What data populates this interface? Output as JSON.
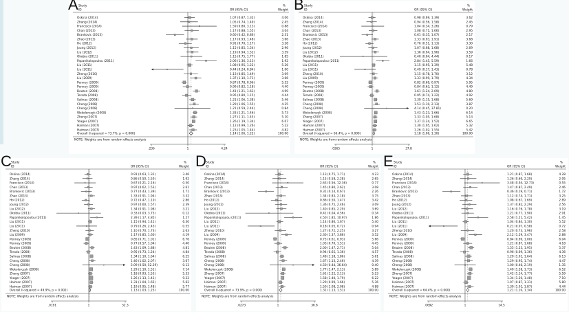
{
  "figure": {
    "description": "Five-panel forest plot (meta-analysis) of odds ratios with 95% confidence intervals",
    "note": "NOTE: Weights are from random effects analysis"
  },
  "chart_data": {
    "type": "forest",
    "note": "NOTE: Weights are from random effects analysis",
    "headers": {
      "study": "Study",
      "id": "ID",
      "or": "OR (95% CI)",
      "pct": "%",
      "weight": "Weight"
    },
    "studies": [
      "Oskina (2014)",
      "Zhang (2014)",
      "Francisco (2014)",
      "Chan (2013)",
      "Brankovic (2013)",
      "Zhao (2013)",
      "Ho (2012)",
      "Joung (2012)",
      "Liu (2012)",
      "Okobia (2011)",
      "Papanikolopoulou (2011)",
      "Liu (2011)",
      "Liu (2011)",
      "Zheng (2010)",
      "Liu (2009)",
      "Penney (2009)",
      "Penney (2009)",
      "Beuten (2008)",
      "Terada (2008)",
      "Salinas (2008)",
      "Cheng (2008)",
      "Cheng (2008)",
      "Wokolorczyk (2008)",
      "Zheng (2007)",
      "Yeager (2007)",
      "Haiman (2007)",
      "Haiman (2007)"
    ],
    "legend_position": "none",
    "grid": false,
    "panels": [
      {
        "label": "A",
        "axis": {
          "min": 0.236,
          "max": 4.24,
          "min_label": ".236",
          "mid_label": "1",
          "max_label": "4.24"
        },
        "overall": {
          "or": 1.14,
          "lo": 1.06,
          "hi": 1.22,
          "weight": "100.00",
          "label": "Overall  (I-squared = 73.7%, p = 0.000)"
        },
        "rows": [
          {
            "or": 1.07,
            "lo": 0.87,
            "hi": 1.32,
            "w": 4.06
          },
          {
            "or": 1.05,
            "lo": 0.74,
            "hi": 1.49,
            "w": 2.45
          },
          {
            "or": 1.59,
            "lo": 0.8,
            "hi": 3.13,
            "w": 0.88
          },
          {
            "or": 1.17,
            "lo": 0.88,
            "hi": 1.55,
            "w": 3.04
          },
          {
            "or": 0.6,
            "lo": 0.42,
            "hi": 0.86,
            "w": 2.31
          },
          {
            "or": 1.17,
            "lo": 0.93,
            "hi": 1.48,
            "w": 3.66
          },
          {
            "or": 0.91,
            "lo": 0.7,
            "hi": 1.17,
            "w": 3.28
          },
          {
            "or": 1.15,
            "lo": 0.85,
            "hi": 1.54,
            "w": 2.96
          },
          {
            "or": 1.19,
            "lo": 0.94,
            "hi": 1.52,
            "w": 3.59
          },
          {
            "or": 1.15,
            "lo": 0.75,
            "hi": 1.77,
            "w": 1.85
          },
          {
            "or": 2.06,
            "lo": 1.36,
            "hi": 3.13,
            "w": 1.92
          },
          {
            "or": 1.08,
            "lo": 0.95,
            "hi": 1.22,
            "w": 5.26
          },
          {
            "or": 0.44,
            "lo": 0.24,
            "hi": 0.84,
            "w": 1.0
          },
          {
            "or": 1.13,
            "lo": 0.85,
            "hi": 1.49,
            "w": 3.09
          },
          {
            "or": 1.37,
            "lo": 1.1,
            "hi": 1.71,
            "w": 3.66
          },
          {
            "or": 0.87,
            "lo": 0.78,
            "hi": 0.96,
            "w": 5.52
          },
          {
            "or": 0.99,
            "lo": 0.82,
            "hi": 1.18,
            "w": 4.4
          },
          {
            "or": 1.41,
            "lo": 1.21,
            "hi": 1.63,
            "w": 4.99
          },
          {
            "or": 0.95,
            "lo": 0.8,
            "hi": 1.15,
            "w": 4.44
          },
          {
            "or": 1.21,
            "lo": 1.06,
            "hi": 1.38,
            "w": 5.46
          },
          {
            "or": 1.29,
            "lo": 1.06,
            "hi": 1.55,
            "w": 4.25
          },
          {
            "or": 1.21,
            "lo": 0.59,
            "hi": 2.44,
            "w": 0.84
          },
          {
            "or": 1.33,
            "lo": 1.21,
            "hi": 1.46,
            "w": 5.73
          },
          {
            "or": 1.27,
            "lo": 1.11,
            "hi": 1.45,
            "w": 5.1
          },
          {
            "or": 1.26,
            "lo": 1.19,
            "hi": 1.34,
            "w": 6.07
          },
          {
            "or": 1.12,
            "lo": 0.99,
            "hi": 1.26,
            "w": 5.22
          },
          {
            "or": 1.23,
            "lo": 1.05,
            "hi": 1.44,
            "w": 4.82
          }
        ]
      },
      {
        "label": "B",
        "axis": {
          "min": 0.0265,
          "max": 37.8,
          "min_label": ".0265",
          "mid_label": "1",
          "max_label": "37.8"
        },
        "overall": {
          "or": 1.18,
          "lo": 1.06,
          "hi": 1.3,
          "weight": "100.00",
          "label": "Overall  (I-squared = 66.4%, p = 0.000)"
        },
        "rows": [
          {
            "or": 0.98,
            "lo": 0.69,
            "hi": 1.39,
            "w": 3.62
          },
          {
            "or": 0.94,
            "lo": 0.56,
            "hi": 1.58,
            "w": 2.45
          },
          {
            "or": 1.04,
            "lo": 0.34,
            "hi": 3.26,
            "w": 0.79
          },
          {
            "or": 1.08,
            "lo": 0.71,
            "hi": 1.66,
            "w": 2.95
          },
          {
            "or": 0.61,
            "lo": 0.35,
            "hi": 1.07,
            "w": 2.17
          },
          {
            "or": 1.33,
            "lo": 0.93,
            "hi": 1.91,
            "w": 3.68
          },
          {
            "or": 0.76,
            "lo": 0.51,
            "hi": 1.13,
            "w": 3.3
          },
          {
            "or": 1.07,
            "lo": 0.68,
            "hi": 1.68,
            "w": 2.69
          },
          {
            "or": 1.36,
            "lo": 0.94,
            "hi": 1.96,
            "w": 3.59
          },
          {
            "or": 0.4,
            "lo": 0.04,
            "hi": 4.44,
            "w": 0.17
          },
          {
            "or": 2.84,
            "lo": 1.45,
            "hi": 5.59,
            "w": 1.66
          },
          {
            "or": 1.15,
            "lo": 0.95,
            "hi": 1.39,
            "w": 5.48
          },
          {
            "or": 0.49,
            "lo": 0.17,
            "hi": 1.43,
            "w": 0.78
          },
          {
            "or": 1.15,
            "lo": 0.78,
            "hi": 1.7,
            "w": 3.12
          },
          {
            "or": 1.33,
            "lo": 0.99,
            "hi": 1.79,
            "w": 4.34
          },
          {
            "or": 0.82,
            "lo": 0.69,
            "hi": 0.97,
            "w": 5.95
          },
          {
            "or": 0.84,
            "lo": 0.63,
            "hi": 1.12,
            "w": 4.49
          },
          {
            "or": 1.61,
            "lo": 1.24,
            "hi": 2.09,
            "w": 4.8
          },
          {
            "or": 0.95,
            "lo": 0.74,
            "hi": 1.22,
            "w": 4.92
          },
          {
            "or": 1.39,
            "lo": 1.15,
            "hi": 1.68,
            "w": 5.69
          },
          {
            "or": 1.53,
            "lo": 1.1,
            "hi": 2.13,
            "w": 3.87
          },
          {
            "or": 4.14,
            "lo": 0.45,
            "hi": 37.81,
            "w": 0.2
          },
          {
            "or": 1.43,
            "lo": 1.23,
            "hi": 1.66,
            "w": 6.14
          },
          {
            "or": 1.33,
            "lo": 1.05,
            "hi": 1.68,
            "w": 5.13
          },
          {
            "or": 1.37,
            "lo": 1.24,
            "hi": 1.52,
            "w": 6.65
          },
          {
            "or": 1.3,
            "lo": 1.05,
            "hi": 1.62,
            "w": 5.32
          },
          {
            "or": 1.26,
            "lo": 1.02,
            "hi": 1.55,
            "w": 5.42
          }
        ]
      },
      {
        "label": "C",
        "axis": {
          "min": 0.0191,
          "max": 52.3,
          "min_label": ".0191",
          "mid_label": "1",
          "max_label": "52.3"
        },
        "overall": {
          "or": 1.13,
          "lo": 1.03,
          "hi": 1.23,
          "weight": "100.00",
          "label": "Overall  (I-squared = 49.9%, p = 0.002)"
        },
        "rows": [
          {
            "or": 0.91,
            "lo": 0.63,
            "hi": 1.31,
            "w": 3.46
          },
          {
            "or": 0.86,
            "lo": 0.5,
            "hi": 1.5,
            "w": 1.92
          },
          {
            "or": 0.67,
            "lo": 0.21,
            "hi": 2.16,
            "w": 0.5
          },
          {
            "or": 0.97,
            "lo": 0.62,
            "hi": 1.53,
            "w": 2.61
          },
          {
            "or": 0.77,
            "lo": 0.43,
            "hi": 1.39,
            "w": 1.71
          },
          {
            "or": 1.33,
            "lo": 0.91,
            "hi": 1.94,
            "w": 3.32
          },
          {
            "or": 0.72,
            "lo": 0.47,
            "hi": 1.1,
            "w": 2.86
          },
          {
            "or": 0.97,
            "lo": 0.6,
            "hi": 1.57,
            "w": 2.39
          },
          {
            "or": 1.34,
            "lo": 0.91,
            "hi": 1.98,
            "w": 3.21
          },
          {
            "or": 0.33,
            "lo": 0.03,
            "hi": 3.75,
            "w": 0.12
          },
          {
            "or": 2.39,
            "lo": 1.17,
            "hi": 4.85,
            "w": 1.27
          },
          {
            "or": 1.15,
            "lo": 0.94,
            "hi": 1.41,
            "w": 6.3
          },
          {
            "or": 0.79,
            "lo": 0.26,
            "hi": 2.43,
            "w": 0.55
          },
          {
            "or": 1.1,
            "lo": 0.7,
            "hi": 1.73,
            "w": 2.63
          },
          {
            "or": 1.17,
            "lo": 0.85,
            "hi": 1.6,
            "w": 4.19
          },
          {
            "or": 0.85,
            "lo": 0.71,
            "hi": 1.01,
            "w": 6.76
          },
          {
            "or": 0.77,
            "lo": 0.57,
            "hi": 1.04,
            "w": 4.4
          },
          {
            "or": 1.43,
            "lo": 1.09,
            "hi": 1.88,
            "w": 4.81
          },
          {
            "or": 0.95,
            "lo": 0.73,
            "hi": 1.24,
            "w": 4.84
          },
          {
            "or": 1.34,
            "lo": 1.1,
            "hi": 1.64,
            "w": 6.25
          },
          {
            "or": 1.46,
            "lo": 1.02,
            "hi": 2.07,
            "w": 3.67
          },
          {
            "or": 5.09,
            "lo": 0.5,
            "hi": 52.29,
            "w": 0.13
          },
          {
            "or": 1.29,
            "lo": 1.1,
            "hi": 1.51,
            "w": 7.14
          },
          {
            "or": 1.18,
            "lo": 0.93,
            "hi": 1.53,
            "w": 5.33
          },
          {
            "or": 1.26,
            "lo": 1.13,
            "hi": 1.41,
            "w": 9.23
          },
          {
            "or": 1.31,
            "lo": 1.04,
            "hi": 1.65,
            "w": 5.62
          },
          {
            "or": 1.19,
            "lo": 0.95,
            "hi": 1.48,
            "w": 5.77
          }
        ]
      },
      {
        "label": "D",
        "axis": {
          "min": 0.0273,
          "max": 36.6,
          "min_label": ".0273",
          "mid_label": "1",
          "max_label": "36.6"
        },
        "overall": {
          "or": 1.31,
          "lo": 1.13,
          "hi": 1.51,
          "weight": "100.00",
          "label": "Overall  (I-squared = 73.9%, p = 0.000)"
        },
        "rows": [
          {
            "or": 1.13,
            "lo": 0.75,
            "hi": 1.71,
            "w": 4.23
          },
          {
            "or": 1.15,
            "lo": 0.58,
            "hi": 2.28,
            "w": 2.65
          },
          {
            "or": 2.63,
            "lo": 0.56,
            "hi": 12.36,
            "w": 0.77
          },
          {
            "or": 1.45,
            "lo": 0.8,
            "hi": 2.62,
            "w": 3.08
          },
          {
            "or": 0.31,
            "lo": 0.14,
            "hi": 0.67,
            "w": 2.26
          },
          {
            "or": 1.34,
            "lo": 0.83,
            "hi": 2.18,
            "w": 3.75
          },
          {
            "or": 0.86,
            "lo": 0.5,
            "hi": 1.47,
            "w": 3.42
          },
          {
            "or": 1.36,
            "lo": 0.75,
            "hi": 2.46,
            "w": 3.09
          },
          {
            "or": 1.4,
            "lo": 0.85,
            "hi": 2.29,
            "w": 3.69
          },
          {
            "or": 0.41,
            "lo": 0.04,
            "hi": 4.56,
            "w": 0.34
          },
          {
            "or": 4.5,
            "lo": 1.85,
            "hi": 10.97,
            "w": 1.86
          },
          {
            "or": 1.14,
            "lo": 0.86,
            "hi": 1.67,
            "w": 5.4
          },
          {
            "or": 0.18,
            "lo": 0.05,
            "hi": 0.72,
            "w": 0.94
          },
          {
            "or": 1.27,
            "lo": 0.72,
            "hi": 2.25,
            "w": 3.27
          },
          {
            "or": 2.3,
            "lo": 1.37,
            "hi": 3.86,
            "w": 3.52
          },
          {
            "or": 0.75,
            "lo": 0.61,
            "hi": 0.93,
            "w": 5.66
          },
          {
            "or": 1.03,
            "lo": 0.7,
            "hi": 1.51,
            "w": 4.45
          },
          {
            "or": 2.0,
            "lo": 1.47,
            "hi": 2.71,
            "w": 5.04
          },
          {
            "or": 0.94,
            "lo": 0.65,
            "hi": 1.36,
            "w": 4.57
          },
          {
            "or": 1.48,
            "lo": 1.18,
            "hi": 1.86,
            "w": 5.61
          },
          {
            "or": 1.67,
            "lo": 1.13,
            "hi": 2.46,
            "w": 4.39
          },
          {
            "or": 4.5,
            "lo": 0.44,
            "hi": 36.64,
            "w": 0.4
          },
          {
            "or": 1.77,
            "lo": 1.47,
            "hi": 2.13,
            "w": 5.89
          },
          {
            "or": 1.61,
            "lo": 1.22,
            "hi": 2.13,
            "w": 5.23
          },
          {
            "or": 1.58,
            "lo": 1.4,
            "hi": 1.79,
            "w": 6.22
          },
          {
            "or": 1.29,
            "lo": 0.99,
            "hi": 1.66,
            "w": 5.36
          },
          {
            "or": 1.5,
            "lo": 1.08,
            "hi": 2.08,
            "w": 4.88
          }
        ]
      },
      {
        "label": "E",
        "axis": {
          "min": 0.0692,
          "max": 14.5,
          "min_label": ".0692",
          "mid_label": "1",
          "max_label": "14.5"
        },
        "overall": {
          "or": 1.21,
          "lo": 1.1,
          "hi": 1.34,
          "weight": "100.00",
          "label": "Overall  (I-squared = 64.4%, p = 0.000)"
        },
        "rows": [
          {
            "or": 1.21,
            "lo": 0.87,
            "hi": 1.68,
            "w": 4.28
          },
          {
            "or": 1.26,
            "lo": 0.69,
            "hi": 2.29,
            "w": 2.95
          },
          {
            "or": 3.48,
            "lo": 0.94,
            "hi": 12.73,
            "w": 0.55
          },
          {
            "or": 1.47,
            "lo": 0.87,
            "hi": 2.49,
            "w": 2.46
          },
          {
            "or": 0.36,
            "lo": 0.19,
            "hi": 0.71,
            "w": 1.72
          },
          {
            "or": 1.12,
            "lo": 0.74,
            "hi": 1.71,
            "w": 3.25
          },
          {
            "or": 1.08,
            "lo": 0.67,
            "hi": 1.69,
            "w": 2.89
          },
          {
            "or": 1.37,
            "lo": 0.82,
            "hi": 2.29,
            "w": 2.56
          },
          {
            "or": 1.16,
            "lo": 0.76,
            "hi": 1.78,
            "w": 3.19
          },
          {
            "or": 1.21,
            "lo": 0.77,
            "hi": 1.9,
            "w": 2.91
          },
          {
            "or": 2.58,
            "lo": 1.21,
            "hi": 5.42,
            "w": 1.45
          },
          {
            "or": 1.04,
            "lo": 0.84,
            "hi": 1.3,
            "w": 5.52
          },
          {
            "or": 0.21,
            "lo": 0.07,
            "hi": 0.58,
            "w": 0.72
          },
          {
            "or": 1.2,
            "lo": 0.73,
            "hi": 1.96,
            "w": 2.58
          },
          {
            "or": 2.12,
            "lo": 1.29,
            "hi": 3.47,
            "w": 2.88
          },
          {
            "or": 0.84,
            "lo": 0.69,
            "hi": 1.0,
            "w": 6.04
          },
          {
            "or": 1.21,
            "lo": 0.87,
            "hi": 1.68,
            "w": 4.18
          },
          {
            "or": 1.55,
            "lo": 1.23,
            "hi": 1.95,
            "w": 5.37
          },
          {
            "or": 0.96,
            "lo": 0.69,
            "hi": 1.36,
            "w": 4.36
          },
          {
            "or": 1.29,
            "lo": 1.01,
            "hi": 1.64,
            "w": 6.13
          },
          {
            "or": 1.29,
            "lo": 0.95,
            "hi": 1.74,
            "w": 4.47
          },
          {
            "or": 1.0,
            "lo": 0.46,
            "hi": 2.19,
            "w": 1.35
          },
          {
            "or": 1.49,
            "lo": 1.28,
            "hi": 1.73,
            "w": 6.52
          },
          {
            "or": 1.42,
            "lo": 1.14,
            "hi": 1.77,
            "w": 5.59
          },
          {
            "or": 1.34,
            "lo": 1.2,
            "hi": 1.48,
            "w": 7.1
          },
          {
            "or": 1.07,
            "lo": 0.87,
            "hi": 1.31,
            "w": 5.8
          },
          {
            "or": 1.39,
            "lo": 1.01,
            "hi": 1.87,
            "w": 4.44
          }
        ]
      }
    ],
    "colors": {
      "square": "#9a9a9a",
      "square_edge": "#4a4a4a",
      "line": "#1a1a1a",
      "dashed": "#888888",
      "text": "#111111",
      "axis": "#444444"
    }
  }
}
